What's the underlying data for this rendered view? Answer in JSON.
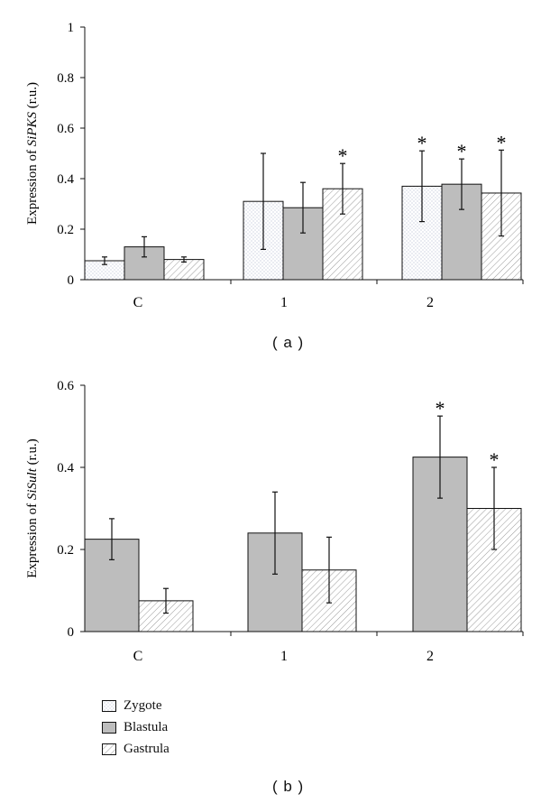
{
  "legend": [
    {
      "label": "Zygote",
      "pattern": "zygote"
    },
    {
      "label": "Blastula",
      "pattern": "blastula"
    },
    {
      "label": "Gastrula",
      "pattern": "gastrula"
    }
  ],
  "colors": {
    "blastula_fill": "#bdbdbd",
    "zygote_dot": "#9aa2c0",
    "gastrula_hatch": "#9a9a9a",
    "axis": "#111111"
  },
  "panels": [
    {
      "label": "( a )"
    },
    {
      "label": "( b )"
    }
  ],
  "chart_data": [
    {
      "type": "bar",
      "ylabel_prefix": "Expression of ",
      "ylabel_italic": "SiPKS",
      "ylabel_suffix": " (r.u.)",
      "ylim": [
        0,
        1
      ],
      "yticks": [
        "0",
        "0.2",
        "0.4",
        "0.6",
        "0.8",
        "1"
      ],
      "ytick_values": [
        0,
        0.2,
        0.4,
        0.6,
        0.8,
        1
      ],
      "categories": [
        "C",
        "1",
        "2"
      ],
      "grid": false,
      "series": [
        {
          "name": "Zygote",
          "pattern": "zygote",
          "values": [
            0.075,
            0.31,
            0.37
          ],
          "errors": [
            0.015,
            0.19,
            0.14
          ],
          "significant": [
            false,
            false,
            true
          ]
        },
        {
          "name": "Blastula",
          "pattern": "blastula",
          "values": [
            0.13,
            0.285,
            0.378
          ],
          "errors": [
            0.04,
            0.1,
            0.1
          ],
          "significant": [
            false,
            false,
            true
          ]
        },
        {
          "name": "Gastrula",
          "pattern": "gastrula",
          "values": [
            0.08,
            0.36,
            0.343
          ],
          "errors": [
            0.01,
            0.1,
            0.17
          ],
          "significant": [
            false,
            true,
            true
          ]
        }
      ],
      "significance_marker": "*"
    },
    {
      "type": "bar",
      "ylabel_prefix": "Expression of ",
      "ylabel_italic": "SiSult",
      "ylabel_suffix": " (r.u.)",
      "ylim": [
        0,
        0.6
      ],
      "yticks": [
        "0",
        "0.2",
        "0.4",
        "0.6"
      ],
      "ytick_values": [
        0,
        0.2,
        0.4,
        0.6
      ],
      "categories": [
        "C",
        "1",
        "2"
      ],
      "grid": false,
      "series": [
        {
          "name": "Blastula",
          "pattern": "blastula",
          "values": [
            0.225,
            0.24,
            0.425
          ],
          "errors": [
            0.05,
            0.1,
            0.1
          ],
          "significant": [
            false,
            false,
            true
          ]
        },
        {
          "name": "Gastrula",
          "pattern": "gastrula",
          "values": [
            0.075,
            0.15,
            0.3
          ],
          "errors": [
            0.03,
            0.08,
            0.1
          ],
          "significant": [
            false,
            false,
            true
          ]
        }
      ],
      "significance_marker": "*"
    }
  ]
}
